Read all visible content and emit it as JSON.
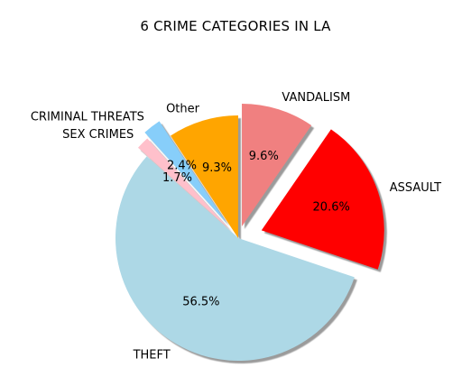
{
  "chart_data": {
    "type": "pie",
    "title": "6 CRIME CATEGORIES IN LA",
    "start_angle_deg": 90,
    "direction": "clockwise",
    "shadow": true,
    "slices": [
      {
        "label": "VANDALISM",
        "value": 9.6,
        "pct_label": "9.6%",
        "color": "#f08080",
        "explode": 0.1
      },
      {
        "label": "ASSAULT",
        "value": 20.6,
        "pct_label": "20.6%",
        "color": "#ff0000",
        "explode": 0.2
      },
      {
        "label": "THEFT",
        "value": 56.5,
        "pct_label": "56.5%",
        "color": "#add8e6",
        "explode": 0.0
      },
      {
        "label": "SEX CRIMES",
        "value": 1.7,
        "pct_label": "1.7%",
        "color": "#ffc0cb",
        "explode": 0.1
      },
      {
        "label": "CRIMINAL THREATS",
        "value": 2.4,
        "pct_label": "2.4%",
        "color": "#87cefa",
        "explode": 0.15
      },
      {
        "label": "Other",
        "value": 9.3,
        "pct_label": "9.3%",
        "color": "#ffa500",
        "explode": 0.0
      }
    ]
  }
}
